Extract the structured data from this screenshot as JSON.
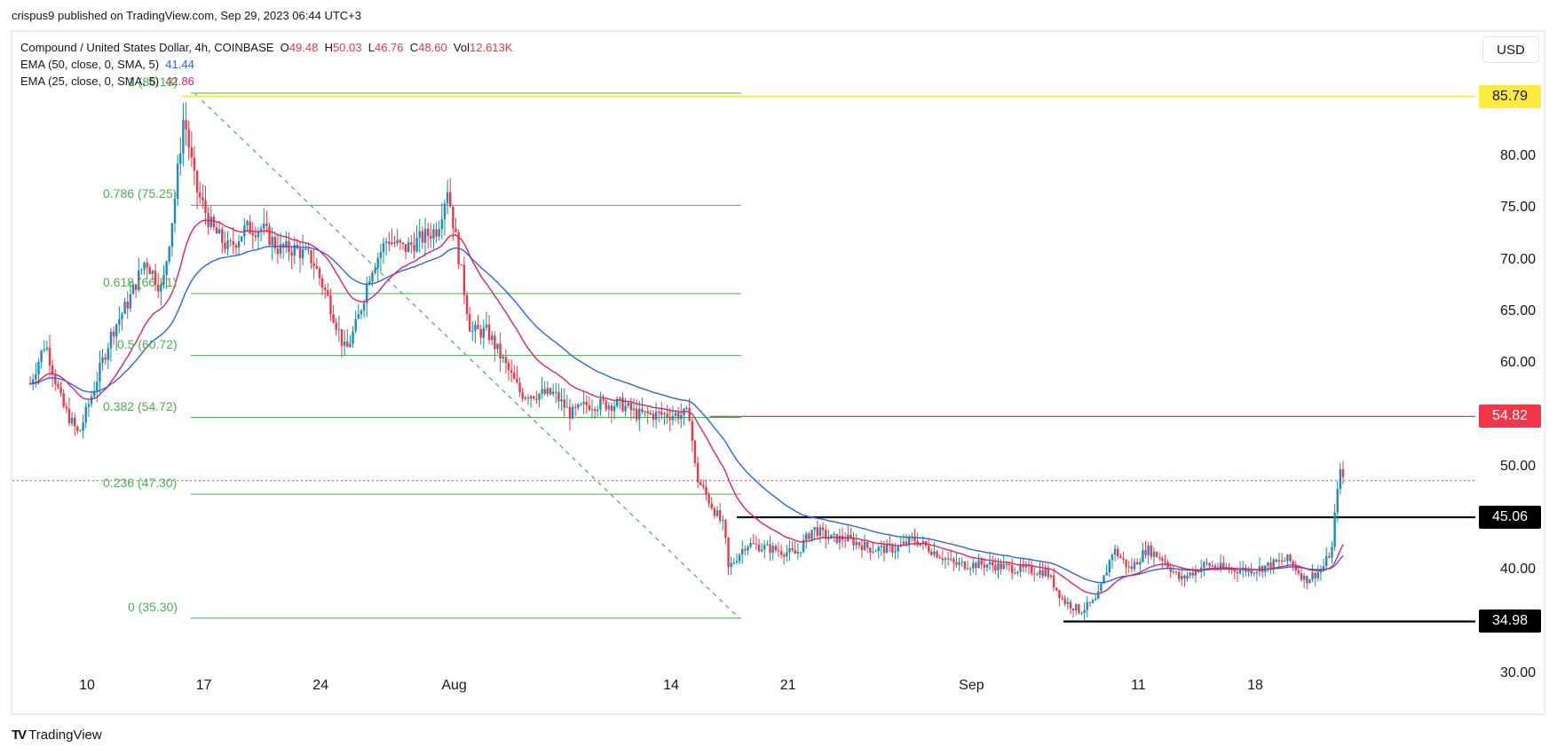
{
  "publisher": "crispus9 published on TradingView.com, Sep 29, 2023 06:44 UTC+3",
  "legend": {
    "symbol": "Compound / United States Dollar, 4h, COINBASE",
    "o_label": "O",
    "o": "49.48",
    "h_label": "H",
    "h": "50.03",
    "l_label": "L",
    "l": "46.76",
    "c_label": "C",
    "c": "48.60",
    "vol_label": "Vol",
    "vol": "12.613K",
    "ema50_label": "EMA (50, close, 0, SMA, 5)",
    "ema50": "41.44",
    "ema25_label": "EMA (25, close, 0, SMA, 5)",
    "ema25": "42.86"
  },
  "currency_button": "USD",
  "branding": {
    "logo": "TV",
    "name": "TradingView"
  },
  "colors": {
    "up_body": "#1e88c8",
    "up_wick": "#089981",
    "down": "#f23645",
    "ema50": "#2962ff",
    "ema25": "#e91e63",
    "fib": "#4caf50",
    "resistance_yellow": "#ffeb3b",
    "resistance_red": "#f23645",
    "support": "#000000"
  },
  "price_tags": [
    {
      "value": "85.79",
      "bg": "#ffeb3b",
      "fg": "#131722"
    },
    {
      "value": "54.82",
      "bg": "#f23645",
      "fg": "#ffffff"
    },
    {
      "value": "45.06",
      "bg": "#000000",
      "fg": "#ffffff"
    },
    {
      "value": "34.98",
      "bg": "#000000",
      "fg": "#ffffff"
    }
  ],
  "fib_labels": [
    {
      "level": "1 (86.13)",
      "price": 86.13
    },
    {
      "level": "0.786 (75.25)",
      "price": 75.25
    },
    {
      "level": "0.618 (66.71)",
      "price": 66.71
    },
    {
      "level": "0.5 (60.72)",
      "price": 60.72
    },
    {
      "level": "0.382 (54.72)",
      "price": 54.72
    },
    {
      "level": "0.236 (47.30)",
      "price": 47.3
    },
    {
      "level": "0 (35.30)",
      "price": 35.3
    }
  ],
  "chart_data": {
    "type": "candlestick",
    "title": "Compound / United States Dollar, 4h, COINBASE",
    "timeframe": "4h",
    "ohlc_last": {
      "open": 49.48,
      "high": 50.03,
      "low": 46.76,
      "close": 48.6,
      "volume": "12.613K"
    },
    "y_axis": {
      "ticks": [
        "30.00",
        "40.00",
        "45.06",
        "50.00",
        "54.82",
        "60.00",
        "65.00",
        "70.00",
        "75.00",
        "80.00",
        "85.79"
      ],
      "range": [
        30,
        87
      ],
      "currency": "USD"
    },
    "x_axis": {
      "ticks": [
        "10",
        "17",
        "24",
        "Aug",
        "14",
        "21",
        "Sep",
        "11",
        "18"
      ]
    },
    "indicators": [
      {
        "name": "EMA (50, close, 0, SMA, 5)",
        "last": 41.44,
        "color": "#2962ff"
      },
      {
        "name": "EMA (25, close, 0, SMA, 5)",
        "last": 42.86,
        "color": "#e91e63"
      }
    ],
    "horizontal_levels": [
      {
        "price": 85.79,
        "color": "yellow",
        "label": "85.79"
      },
      {
        "price": 54.82,
        "color": "red",
        "label": "54.82"
      },
      {
        "price": 45.06,
        "color": "black",
        "label": "45.06"
      },
      {
        "price": 34.98,
        "color": "black",
        "label": "34.98"
      }
    ],
    "fibonacci_retracement": {
      "from": 86.13,
      "to": 35.3,
      "levels": [
        {
          "ratio": 1,
          "price": 86.13
        },
        {
          "ratio": 0.786,
          "price": 75.25
        },
        {
          "ratio": 0.618,
          "price": 66.71
        },
        {
          "ratio": 0.5,
          "price": 60.72
        },
        {
          "ratio": 0.382,
          "price": 54.72
        },
        {
          "ratio": 0.236,
          "price": 47.3
        },
        {
          "ratio": 0,
          "price": 35.3
        }
      ]
    },
    "last_price_line": 48.6,
    "price_path_keypoints": [
      {
        "day": 6.6,
        "price": 58
      },
      {
        "day": 7.5,
        "price": 62
      },
      {
        "day": 8.5,
        "price": 56
      },
      {
        "day": 9.5,
        "price": 53
      },
      {
        "day": 10.3,
        "price": 57
      },
      {
        "day": 11.5,
        "price": 63
      },
      {
        "day": 12.5,
        "price": 66
      },
      {
        "day": 13.5,
        "price": 70
      },
      {
        "day": 14.5,
        "price": 67
      },
      {
        "day": 15.2,
        "price": 75
      },
      {
        "day": 15.8,
        "price": 84
      },
      {
        "day": 16.5,
        "price": 77
      },
      {
        "day": 17.5,
        "price": 73
      },
      {
        "day": 18.5,
        "price": 71
      },
      {
        "day": 19.5,
        "price": 73
      },
      {
        "day": 20.5,
        "price": 73
      },
      {
        "day": 21.5,
        "price": 71
      },
      {
        "day": 22.5,
        "price": 71
      },
      {
        "day": 23.5,
        "price": 70
      },
      {
        "day": 24.5,
        "price": 66
      },
      {
        "day": 25.5,
        "price": 61
      },
      {
        "day": 26.2,
        "price": 64
      },
      {
        "day": 27,
        "price": 69
      },
      {
        "day": 28,
        "price": 72
      },
      {
        "day": 29,
        "price": 71
      },
      {
        "day": 30,
        "price": 72
      },
      {
        "day": 31,
        "price": 73
      },
      {
        "day": 31.6,
        "price": 77
      },
      {
        "day": 32.3,
        "price": 70
      },
      {
        "day": 33,
        "price": 63
      },
      {
        "day": 34,
        "price": 63
      },
      {
        "day": 35,
        "price": 60
      },
      {
        "day": 36,
        "price": 57
      },
      {
        "day": 37,
        "price": 57
      },
      {
        "day": 38,
        "price": 57
      },
      {
        "day": 39,
        "price": 55
      },
      {
        "day": 40,
        "price": 56
      },
      {
        "day": 41,
        "price": 56
      },
      {
        "day": 42,
        "price": 56
      },
      {
        "day": 43,
        "price": 55
      },
      {
        "day": 44,
        "price": 55
      },
      {
        "day": 45,
        "price": 55
      },
      {
        "day": 46.1,
        "price": 55
      },
      {
        "day": 46.5,
        "price": 49
      },
      {
        "day": 47.5,
        "price": 46
      },
      {
        "day": 48.2,
        "price": 44
      },
      {
        "day": 48.4,
        "price": 40
      },
      {
        "day": 49.5,
        "price": 42.5
      },
      {
        "day": 51,
        "price": 42
      },
      {
        "day": 52.5,
        "price": 41.5
      },
      {
        "day": 53.5,
        "price": 44
      },
      {
        "day": 54.5,
        "price": 43
      },
      {
        "day": 55.5,
        "price": 43
      },
      {
        "day": 57,
        "price": 42
      },
      {
        "day": 58.5,
        "price": 42
      },
      {
        "day": 59.5,
        "price": 43
      },
      {
        "day": 60.5,
        "price": 42
      },
      {
        "day": 62,
        "price": 40.5
      },
      {
        "day": 64,
        "price": 40.5
      },
      {
        "day": 66,
        "price": 40
      },
      {
        "day": 67.5,
        "price": 39.8
      },
      {
        "day": 68.5,
        "price": 37
      },
      {
        "day": 69.5,
        "price": 36
      },
      {
        "day": 70.5,
        "price": 37
      },
      {
        "day": 71.5,
        "price": 42
      },
      {
        "day": 72.5,
        "price": 40
      },
      {
        "day": 73.5,
        "price": 42
      },
      {
        "day": 74.5,
        "price": 41
      },
      {
        "day": 75.5,
        "price": 39
      },
      {
        "day": 77,
        "price": 40.5
      },
      {
        "day": 78.5,
        "price": 40
      },
      {
        "day": 80,
        "price": 40
      },
      {
        "day": 81,
        "price": 40.5
      },
      {
        "day": 82,
        "price": 41
      },
      {
        "day": 83,
        "price": 39
      },
      {
        "day": 84,
        "price": 40
      },
      {
        "day": 84.6,
        "price": 42
      },
      {
        "day": 85,
        "price": 49.5
      },
      {
        "day": 85.4,
        "price": 48.6
      }
    ]
  }
}
